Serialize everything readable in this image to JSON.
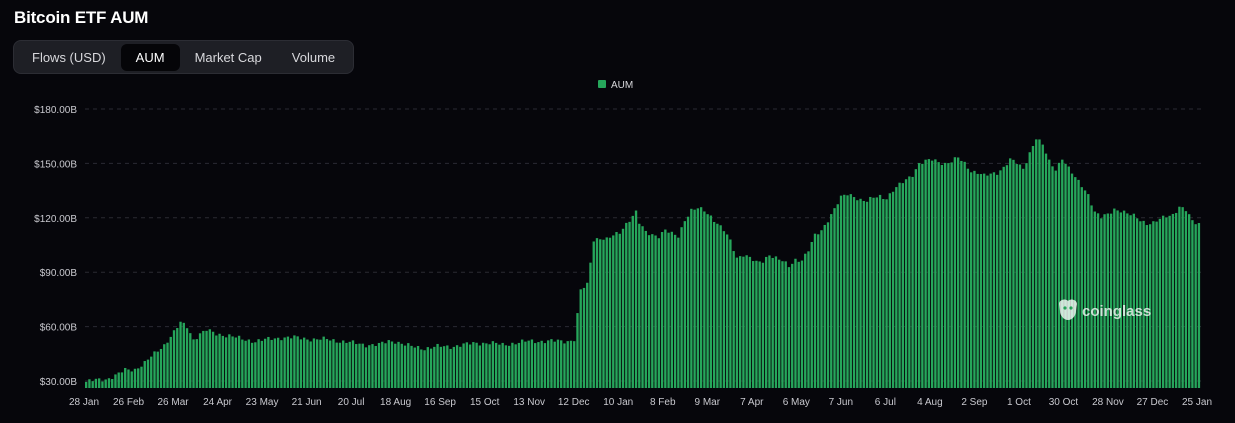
{
  "header": {
    "title": "Bitcoin ETF AUM"
  },
  "tabs": [
    {
      "label": "Flows (USD)",
      "active": false
    },
    {
      "label": "AUM",
      "active": true
    },
    {
      "label": "Market Cap",
      "active": false
    },
    {
      "label": "Volume",
      "active": false
    }
  ],
  "watermark": {
    "text": "coinglass",
    "icon": "coinglass-logo-icon"
  },
  "colors": {
    "bar": "#26a65b",
    "background": "#06060b",
    "grid": "#2a2a33"
  },
  "chart_data": {
    "type": "bar",
    "title": "",
    "xlabel": "",
    "ylabel": "",
    "legend": {
      "position": "top-center",
      "entries": [
        "AUM"
      ]
    },
    "grid": true,
    "ylim": [
      30,
      180
    ],
    "y_ticks": [
      "$30.00B",
      "$60.00B",
      "$90.00B",
      "$120.00B",
      "$150.00B",
      "$180.00B"
    ],
    "y_tick_values": [
      30,
      60,
      90,
      120,
      150,
      180
    ],
    "x_tick_labels": [
      "28 Jan",
      "26 Feb",
      "26 Mar",
      "24 Apr",
      "23 May",
      "21 Jun",
      "20 Jul",
      "18 Aug",
      "16 Sep",
      "15 Oct",
      "13 Nov",
      "12 Dec",
      "10 Jan",
      "8 Feb",
      "9 Mar",
      "7 Apr",
      "6 May",
      "7 Jun",
      "6 Jul",
      "4 Aug",
      "2 Sep",
      "1 Oct",
      "30 Oct",
      "28 Nov",
      "27 Dec",
      "25 Jan"
    ],
    "series": [
      {
        "name": "AUM",
        "unit": "$B",
        "color": "#26a65b",
        "keypoints": [
          [
            0,
            29.5
          ],
          [
            3,
            30.5
          ],
          [
            6,
            31
          ],
          [
            9,
            33
          ],
          [
            12,
            36
          ],
          [
            15,
            36.5
          ],
          [
            18,
            40
          ],
          [
            21,
            45
          ],
          [
            24,
            50
          ],
          [
            27,
            57
          ],
          [
            29,
            62
          ],
          [
            31,
            60
          ],
          [
            33,
            53
          ],
          [
            35,
            56
          ],
          [
            37,
            58
          ],
          [
            40,
            56
          ],
          [
            44,
            55
          ],
          [
            48,
            53
          ],
          [
            52,
            52
          ],
          [
            56,
            53
          ],
          [
            60,
            54
          ],
          [
            64,
            54
          ],
          [
            70,
            53
          ],
          [
            74,
            53
          ],
          [
            78,
            52
          ],
          [
            82,
            51
          ],
          [
            86,
            50
          ],
          [
            90,
            50
          ],
          [
            93,
            52
          ],
          [
            95,
            52
          ],
          [
            98,
            50
          ],
          [
            100,
            49
          ],
          [
            104,
            48
          ],
          [
            108,
            49
          ],
          [
            112,
            49
          ],
          [
            116,
            50
          ],
          [
            120,
            51
          ],
          [
            124,
            51
          ],
          [
            128,
            50
          ],
          [
            132,
            51
          ],
          [
            136,
            52
          ],
          [
            140,
            52
          ],
          [
            144,
            52
          ],
          [
            148,
            52
          ],
          [
            150,
            53
          ],
          [
            152,
            80
          ],
          [
            154,
            83
          ],
          [
            156,
            108
          ],
          [
            158,
            109
          ],
          [
            160,
            108
          ],
          [
            162,
            110
          ],
          [
            164,
            112
          ],
          [
            166,
            117
          ],
          [
            168,
            121
          ],
          [
            169,
            123
          ],
          [
            170,
            117
          ],
          [
            172,
            112
          ],
          [
            174,
            111
          ],
          [
            176,
            110
          ],
          [
            178,
            113
          ],
          [
            180,
            111
          ],
          [
            182,
            110
          ],
          [
            184,
            119
          ],
          [
            186,
            124
          ],
          [
            188,
            125
          ],
          [
            190,
            124
          ],
          [
            192,
            121
          ],
          [
            194,
            117
          ],
          [
            196,
            113
          ],
          [
            198,
            107
          ],
          [
            200,
            98
          ],
          [
            202,
            100
          ],
          [
            204,
            98
          ],
          [
            206,
            95
          ],
          [
            208,
            96
          ],
          [
            210,
            100
          ],
          [
            212,
            98
          ],
          [
            214,
            96
          ],
          [
            216,
            93
          ],
          [
            218,
            97
          ],
          [
            220,
            97
          ],
          [
            222,
            102
          ],
          [
            224,
            110
          ],
          [
            226,
            113
          ],
          [
            228,
            119
          ],
          [
            230,
            125
          ],
          [
            232,
            131
          ],
          [
            234,
            133
          ],
          [
            236,
            132
          ],
          [
            238,
            130
          ],
          [
            240,
            129
          ],
          [
            242,
            131
          ],
          [
            244,
            132
          ],
          [
            246,
            131
          ],
          [
            248,
            135
          ],
          [
            250,
            138
          ],
          [
            252,
            141
          ],
          [
            254,
            144
          ],
          [
            256,
            150
          ],
          [
            258,
            151
          ],
          [
            260,
            152
          ],
          [
            262,
            151
          ],
          [
            264,
            150
          ],
          [
            266,
            151
          ],
          [
            268,
            153
          ],
          [
            270,
            150
          ],
          [
            272,
            146
          ],
          [
            274,
            145
          ],
          [
            276,
            143
          ],
          [
            278,
            144
          ],
          [
            280,
            145
          ],
          [
            282,
            148
          ],
          [
            284,
            152
          ],
          [
            286,
            150
          ],
          [
            288,
            147
          ],
          [
            290,
            156
          ],
          [
            292,
            164
          ],
          [
            294,
            160
          ],
          [
            296,
            151
          ],
          [
            298,
            147
          ],
          [
            300,
            153
          ],
          [
            302,
            147
          ],
          [
            304,
            142
          ],
          [
            306,
            138
          ],
          [
            308,
            133
          ],
          [
            310,
            123
          ],
          [
            312,
            120
          ],
          [
            314,
            122
          ],
          [
            316,
            125
          ],
          [
            318,
            124
          ],
          [
            320,
            122
          ],
          [
            322,
            121
          ],
          [
            324,
            119
          ],
          [
            326,
            117
          ],
          [
            328,
            117
          ],
          [
            330,
            119
          ],
          [
            332,
            121
          ],
          [
            334,
            122
          ],
          [
            336,
            126
          ],
          [
            338,
            124
          ],
          [
            340,
            118
          ],
          [
            342,
            117
          ]
        ]
      }
    ]
  }
}
